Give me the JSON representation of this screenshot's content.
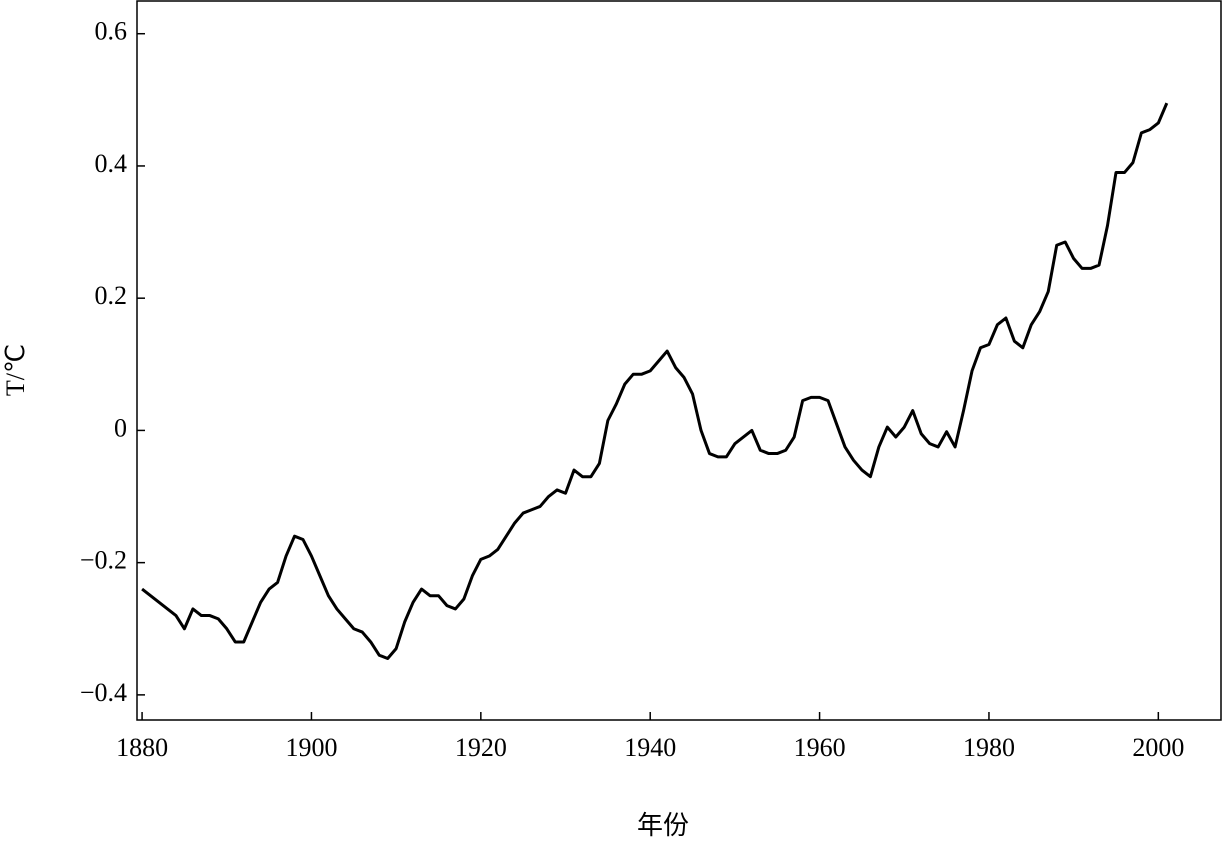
{
  "chart_data": {
    "type": "line",
    "x_label": "年份",
    "y_label": "T/℃",
    "color": "#000000",
    "x": [
      1880,
      1881,
      1882,
      1883,
      1884,
      1885,
      1886,
      1887,
      1888,
      1889,
      1890,
      1891,
      1892,
      1893,
      1894,
      1895,
      1896,
      1897,
      1898,
      1899,
      1900,
      1901,
      1902,
      1903,
      1904,
      1905,
      1906,
      1907,
      1908,
      1909,
      1910,
      1911,
      1912,
      1913,
      1914,
      1915,
      1916,
      1917,
      1918,
      1919,
      1920,
      1921,
      1922,
      1923,
      1924,
      1925,
      1926,
      1927,
      1928,
      1929,
      1930,
      1931,
      1932,
      1933,
      1934,
      1935,
      1936,
      1937,
      1938,
      1939,
      1940,
      1941,
      1942,
      1943,
      1944,
      1945,
      1946,
      1947,
      1948,
      1949,
      1950,
      1951,
      1952,
      1953,
      1954,
      1955,
      1956,
      1957,
      1958,
      1959,
      1960,
      1961,
      1962,
      1963,
      1964,
      1965,
      1966,
      1967,
      1968,
      1969,
      1970,
      1971,
      1972,
      1973,
      1974,
      1975,
      1976,
      1977,
      1978,
      1979,
      1980,
      1981,
      1982,
      1983,
      1984,
      1985,
      1986,
      1987,
      1988,
      1989,
      1990,
      1991,
      1992,
      1993,
      1994,
      1995,
      1996,
      1997,
      1998,
      1999,
      2000,
      2001
    ],
    "values": [
      -0.24,
      -0.25,
      -0.26,
      -0.27,
      -0.28,
      -0.3,
      -0.27,
      -0.28,
      -0.28,
      -0.285,
      -0.3,
      -0.32,
      -0.32,
      -0.29,
      -0.26,
      -0.24,
      -0.23,
      -0.19,
      -0.16,
      -0.165,
      -0.19,
      -0.22,
      -0.25,
      -0.27,
      -0.285,
      -0.3,
      -0.305,
      -0.32,
      -0.34,
      -0.345,
      -0.33,
      -0.29,
      -0.26,
      -0.24,
      -0.25,
      -0.25,
      -0.265,
      -0.27,
      -0.255,
      -0.22,
      -0.195,
      -0.19,
      -0.18,
      -0.16,
      -0.14,
      -0.125,
      -0.12,
      -0.115,
      -0.1,
      -0.09,
      -0.095,
      -0.06,
      -0.07,
      -0.07,
      -0.05,
      0.015,
      0.04,
      0.07,
      0.085,
      0.085,
      0.09,
      0.105,
      0.12,
      0.095,
      0.08,
      0.055,
      0.0,
      -0.035,
      -0.04,
      -0.04,
      -0.02,
      -0.01,
      0.0,
      -0.03,
      -0.035,
      -0.035,
      -0.03,
      -0.01,
      0.045,
      0.05,
      0.05,
      0.045,
      0.01,
      -0.025,
      -0.045,
      -0.06,
      -0.07,
      -0.025,
      0.005,
      -0.01,
      0.005,
      0.03,
      -0.005,
      -0.02,
      -0.025,
      -0.002,
      -0.025,
      0.03,
      0.09,
      0.125,
      0.13,
      0.16,
      0.17,
      0.135,
      0.125,
      0.16,
      0.18,
      0.21,
      0.28,
      0.285,
      0.26,
      0.245,
      0.245,
      0.25,
      0.31,
      0.39,
      0.39,
      0.405,
      0.45,
      0.455,
      0.465,
      0.495
    ],
    "xlim": [
      1879.4,
      2007.4
    ],
    "ylim": [
      -0.438,
      0.651
    ],
    "xticks": [
      1880,
      1900,
      1920,
      1940,
      1960,
      1980,
      2000
    ],
    "yticks": [
      {
        "value": -0.4,
        "label": "−0.4"
      },
      {
        "value": -0.2,
        "label": "−0.2"
      },
      0,
      0.2,
      0.4,
      0.6
    ]
  }
}
